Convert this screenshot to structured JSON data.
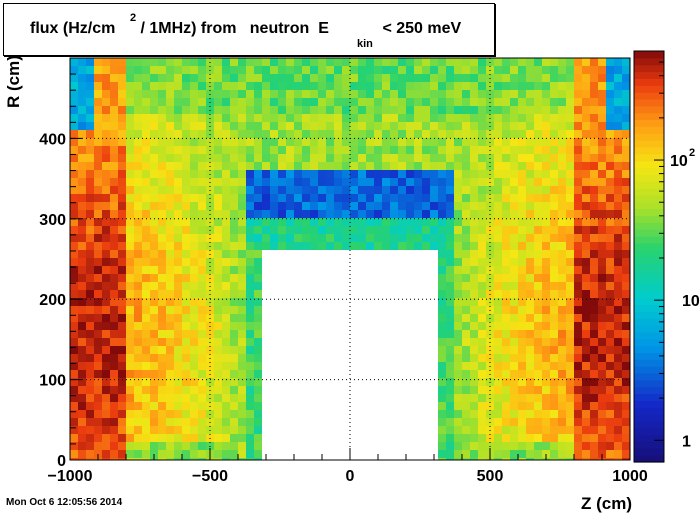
{
  "chart_data": {
    "type": "heatmap",
    "title_parts": {
      "before_sup": "flux (Hz/cm",
      "sup": "2",
      "after_sup": " / 1MHz) from   neutron  E",
      "sub": "kin",
      "after_sub": " < 250 meV"
    },
    "xlabel": "Z (cm)",
    "ylabel": "R (cm)",
    "xlim": [
      -1000,
      1000
    ],
    "ylim": [
      0,
      500
    ],
    "x_ticks": [
      {
        "value": -1000,
        "label": "−1000"
      },
      {
        "value": -500,
        "label": "−500"
      },
      {
        "value": 0,
        "label": "0"
      },
      {
        "value": 500,
        "label": "500"
      },
      {
        "value": 1000,
        "label": "1000"
      }
    ],
    "y_ticks": [
      {
        "value": 0,
        "label": "0"
      },
      {
        "value": 100,
        "label": "100"
      },
      {
        "value": 200,
        "label": "200"
      },
      {
        "value": 300,
        "label": "300"
      },
      {
        "value": 400,
        "label": "400"
      }
    ],
    "z_scale": "log",
    "z_range": [
      0.7,
      600
    ],
    "z_ticks": [
      {
        "value": 1,
        "label": "1"
      },
      {
        "value": 10,
        "label": "10"
      },
      {
        "value": 100,
        "label": "10",
        "sup": "2"
      }
    ],
    "colormap": "rainbow (blue to dark red)",
    "grid": "dotted",
    "empty_regions": [
      {
        "z": [
          -300,
          300
        ],
        "r": [
          0,
          260
        ]
      }
    ],
    "approx_flux_regions": [
      {
        "z": [
          -1000,
          -800
        ],
        "r": [
          0,
          400
        ],
        "flux": 300
      },
      {
        "z": [
          800,
          1000
        ],
        "r": [
          0,
          400
        ],
        "flux": 300
      },
      {
        "z": [
          -800,
          800
        ],
        "r": [
          0,
          500
        ],
        "flux": 70
      },
      {
        "z": [
          -370,
          370
        ],
        "r": [
          300,
          360
        ],
        "flux": 4
      },
      {
        "z": [
          -370,
          370
        ],
        "r": [
          260,
          300
        ],
        "flux": 20
      },
      {
        "z": [
          -1000,
          -900
        ],
        "r": [
          420,
          500
        ],
        "flux": 8
      },
      {
        "z": [
          900,
          1000
        ],
        "r": [
          420,
          500
        ],
        "flux": 8
      }
    ]
  },
  "footer": {
    "timestamp": "Mon Oct  6 12:05:56 2014"
  }
}
